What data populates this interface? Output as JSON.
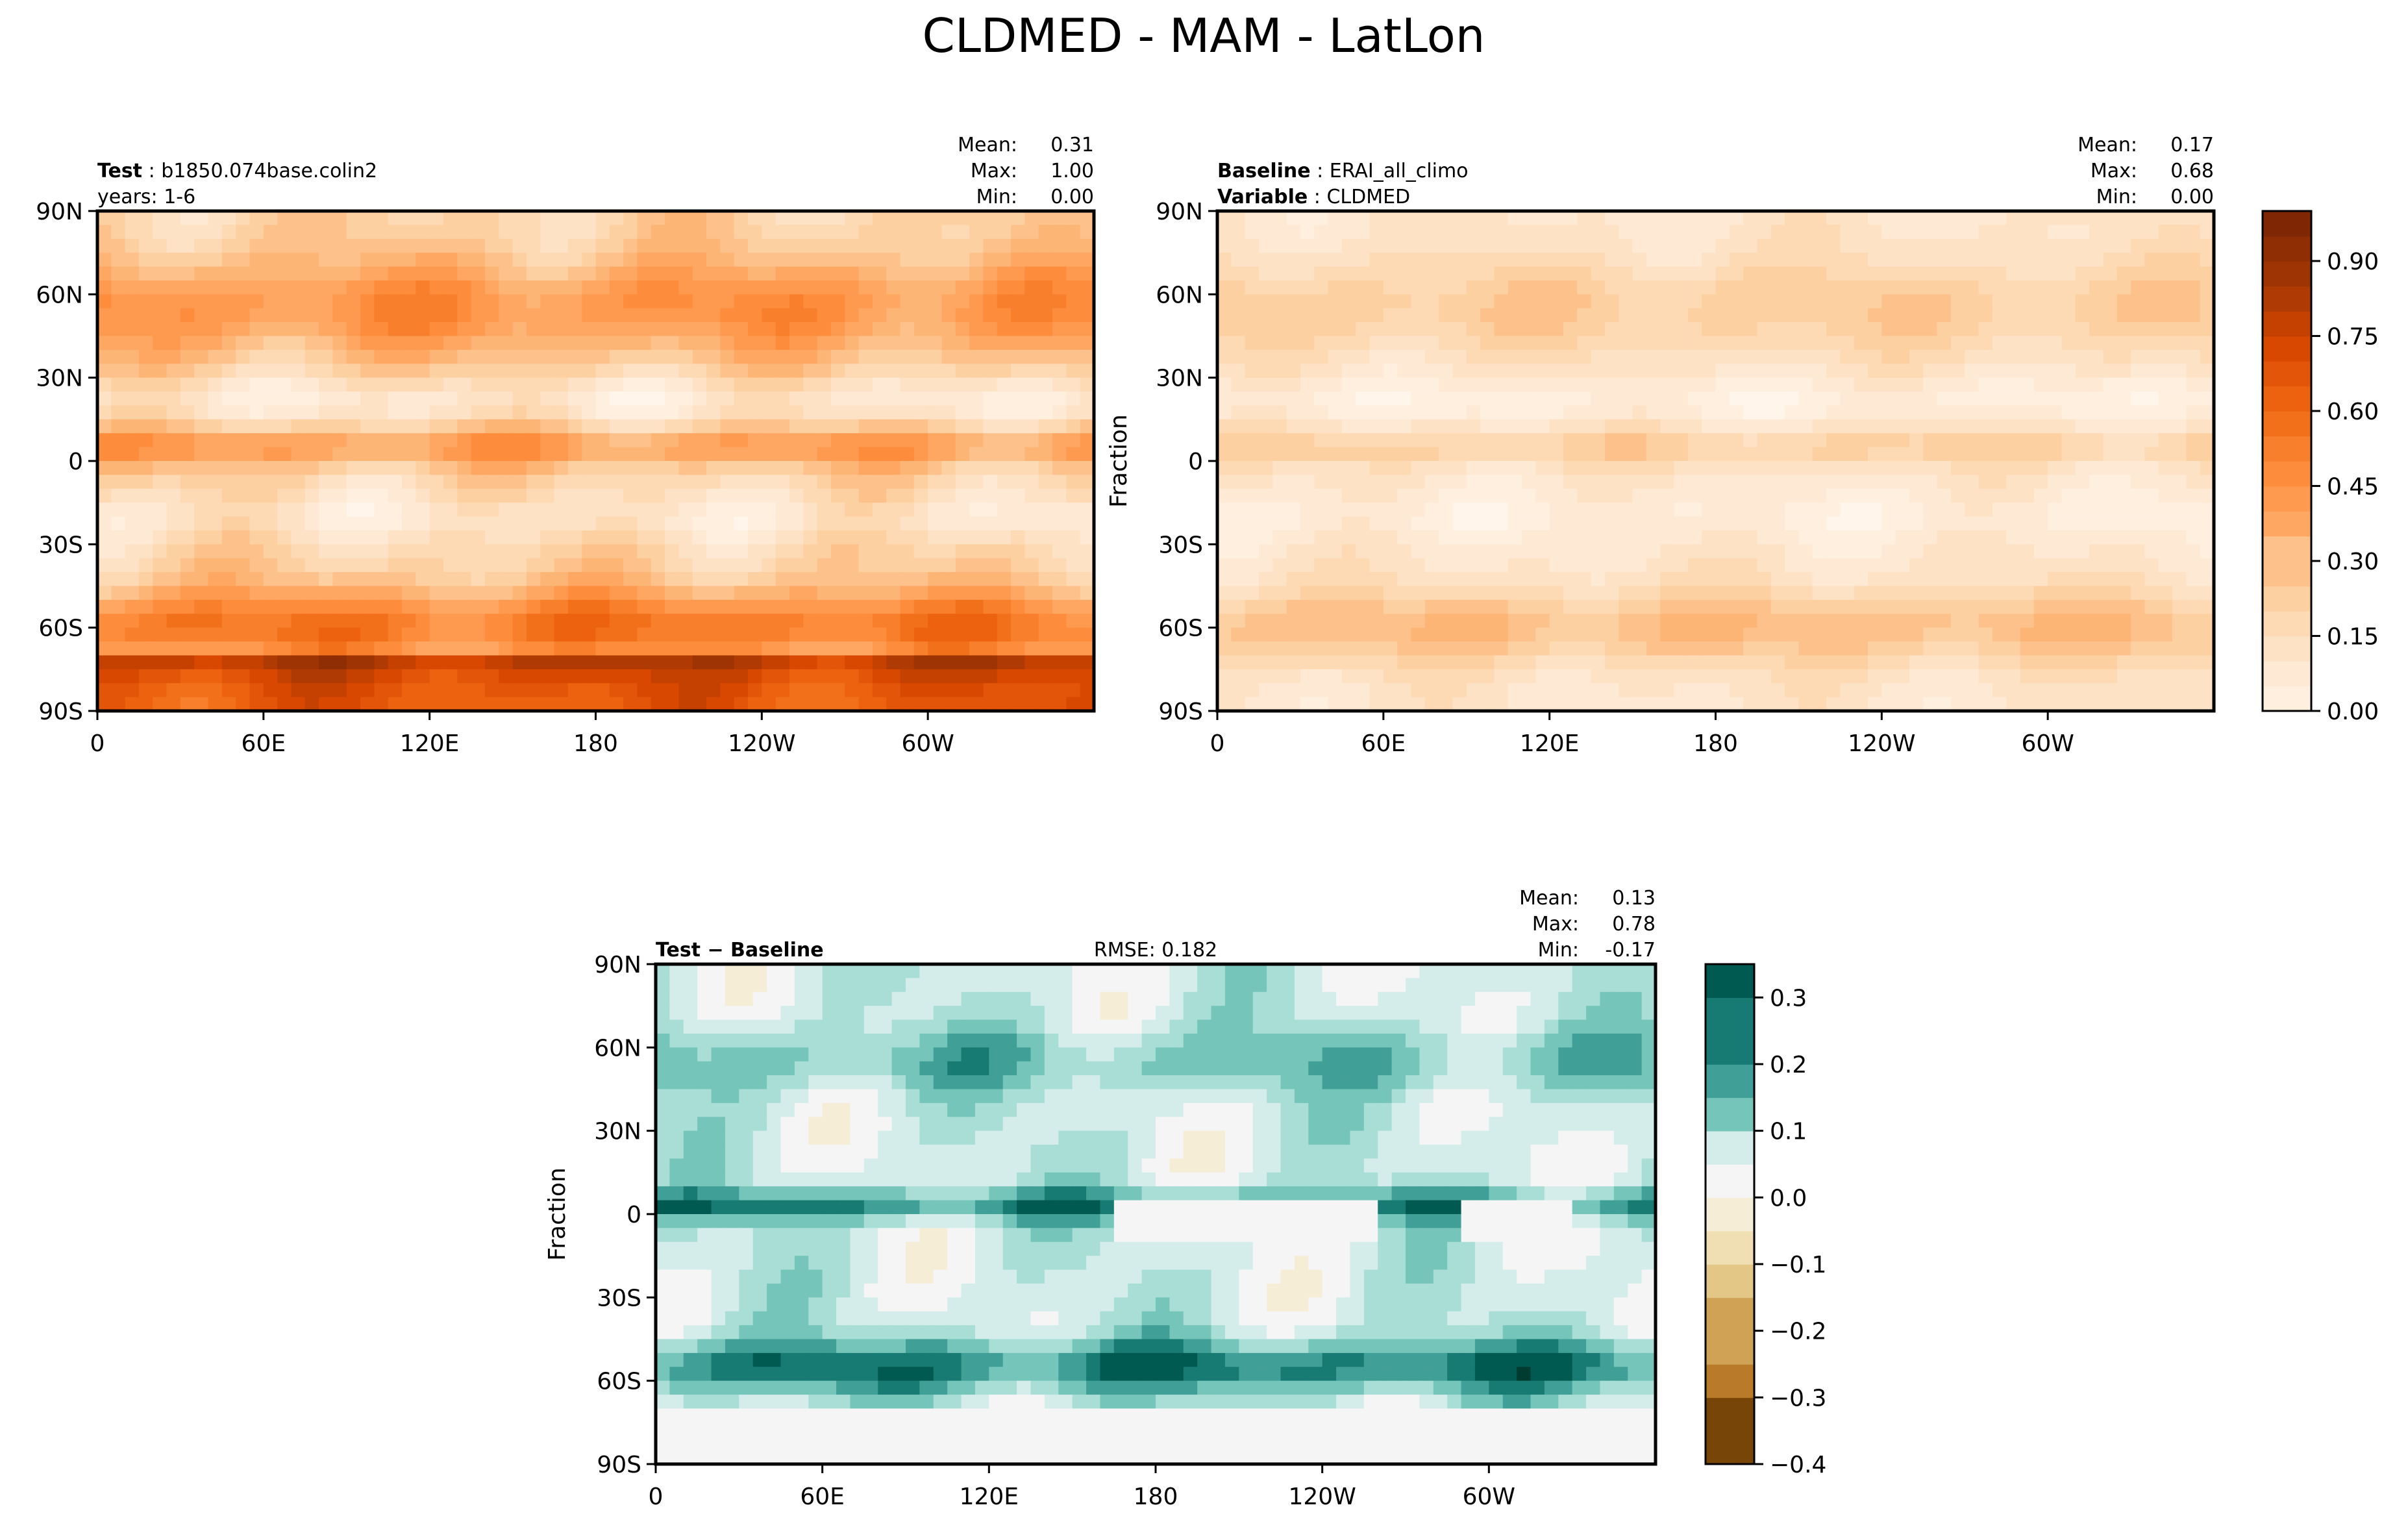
{
  "figure": {
    "title": "CLDMED - MAM - LatLon",
    "panels": [
      {
        "id": "test",
        "left_lines": [
          {
            "label": "Test",
            "value": "b1850.074base.colin2"
          },
          {
            "label": "",
            "value": "years: 1-6"
          }
        ],
        "center_text": "",
        "stats": {
          "mean": "0.31",
          "max": "1.00",
          "min": "0.00"
        },
        "ylabel": "",
        "palette": "oranges",
        "field_scale": 1.0,
        "field_offset": 0.0
      },
      {
        "id": "baseline",
        "left_lines": [
          {
            "label": "Baseline",
            "value": "ERAI_all_climo"
          },
          {
            "label": "Variable",
            "value": "CLDMED"
          }
        ],
        "center_text": "",
        "stats": {
          "mean": "0.17",
          "max": "0.68",
          "min": "0.00"
        },
        "ylabel": "Fraction",
        "palette": "oranges",
        "field_scale": 0.55,
        "field_offset": 0.0
      },
      {
        "id": "diff",
        "left_lines": [
          {
            "label": "Test − Baseline",
            "value": ""
          }
        ],
        "center_text": "RMSE: 0.182",
        "stats": {
          "mean": "0.13",
          "max": "0.78",
          "min": "-0.17"
        },
        "ylabel": "Fraction",
        "palette": "diverging",
        "field_scale": 1.0,
        "field_offset": 0.0
      }
    ],
    "stat_labels": {
      "mean": "Mean:",
      "max": "Max:",
      "min": "Min:"
    },
    "colorbars": [
      {
        "id": "cb-main",
        "ticks": [
          "0.00",
          "0.15",
          "0.30",
          "0.45",
          "0.60",
          "0.75",
          "0.90"
        ],
        "tick_values": [
          0,
          0.15,
          0.3,
          0.45,
          0.6,
          0.75,
          0.9
        ],
        "range": [
          0,
          1.0
        ]
      },
      {
        "id": "cb-diff",
        "ticks": [
          "0.3",
          "0.2",
          "0.1",
          "0.0",
          "−0.1",
          "−0.2",
          "−0.3",
          "−0.4"
        ],
        "tick_values": [
          0.3,
          0.2,
          0.1,
          0.0,
          -0.1,
          -0.2,
          -0.3,
          -0.4
        ],
        "range": [
          -0.4,
          0.35
        ]
      }
    ],
    "colors": {
      "oranges": [
        "#fff5eb",
        "#fee6ce",
        "#fdd0a2",
        "#fdae6b",
        "#fd8d3c",
        "#f16913",
        "#d94801",
        "#a63603",
        "#7f2704"
      ],
      "diverging_pos": [
        "#f5f5f5",
        "#c7eae5",
        "#80cdc1",
        "#35978f",
        "#01665e",
        "#003c30"
      ],
      "diverging_neg": [
        "#f5f5f5",
        "#f6e8c3",
        "#dfc27d",
        "#bf812d",
        "#8c510a",
        "#543005"
      ]
    }
  },
  "chart_data": [
    {
      "type": "heatmap",
      "title": "Test: b1850.074base.colin2",
      "subtitle": "years: 1-6",
      "x_ticks": [
        "0",
        "60E",
        "120E",
        "180",
        "120W",
        "60W"
      ],
      "y_ticks": [
        "90N",
        "60N",
        "30N",
        "0",
        "30S",
        "60S",
        "90S"
      ],
      "xlim": [
        0,
        360
      ],
      "ylim": [
        -90,
        90
      ],
      "stats": {
        "mean": 0.31,
        "max": 1.0,
        "min": 0.0
      },
      "colorbar_range": [
        0.0,
        1.0
      ]
    },
    {
      "type": "heatmap",
      "title": "Baseline: ERAI_all_climo",
      "subtitle": "Variable: CLDMED",
      "ylabel": "Fraction",
      "x_ticks": [
        "0",
        "60E",
        "120E",
        "180",
        "120W",
        "60W"
      ],
      "y_ticks": [
        "90N",
        "60N",
        "30N",
        "0",
        "30S",
        "60S",
        "90S"
      ],
      "xlim": [
        0,
        360
      ],
      "ylim": [
        -90,
        90
      ],
      "stats": {
        "mean": 0.17,
        "max": 0.68,
        "min": 0.0
      },
      "colorbar_range": [
        0.0,
        1.0
      ]
    },
    {
      "type": "heatmap",
      "title": "Test − Baseline",
      "annotation": "RMSE: 0.182",
      "ylabel": "Fraction",
      "x_ticks": [
        "0",
        "60E",
        "120E",
        "180",
        "120W",
        "60W"
      ],
      "y_ticks": [
        "90N",
        "60N",
        "30N",
        "0",
        "30S",
        "60S",
        "90S"
      ],
      "xlim": [
        0,
        360
      ],
      "ylim": [
        -90,
        90
      ],
      "stats": {
        "mean": 0.13,
        "max": 0.78,
        "min": -0.17
      },
      "colorbar_range": [
        -0.4,
        0.35
      ]
    }
  ]
}
